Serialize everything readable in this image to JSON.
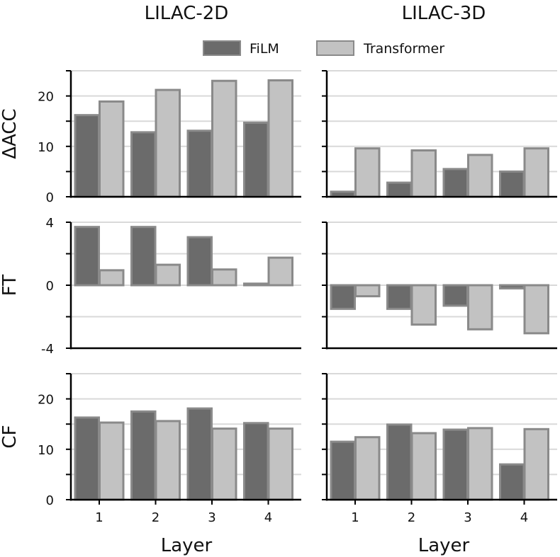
{
  "chart_data": {
    "type": "bar",
    "columns": [
      "LILAC-2D",
      "LILAC-3D"
    ],
    "xlabel": "Layer",
    "categories": [
      "1",
      "2",
      "3",
      "4"
    ],
    "legend": [
      {
        "name": "FiLM",
        "color": "#6b6b6b"
      },
      {
        "name": "Transformer",
        "color": "#c2c2c2"
      }
    ],
    "edge_color": "#8a8a8a",
    "grid_color": "#d9d9d9",
    "rows": [
      {
        "ylabel": "ΔACC",
        "ylim": [
          0,
          25
        ],
        "yticks": [
          0,
          5,
          10,
          15,
          20,
          25
        ],
        "ytick_labels": [
          "0",
          "",
          "10",
          "",
          "20",
          ""
        ],
        "panels": [
          {
            "column": "LILAC-2D",
            "series": [
              {
                "name": "FiLM",
                "values": [
                  16.2,
                  12.8,
                  13.1,
                  14.7
                ]
              },
              {
                "name": "Transformer",
                "values": [
                  18.9,
                  21.2,
                  23.0,
                  23.1
                ]
              }
            ]
          },
          {
            "column": "LILAC-3D",
            "series": [
              {
                "name": "FiLM",
                "values": [
                  1.0,
                  2.8,
                  5.5,
                  5.0
                ]
              },
              {
                "name": "Transformer",
                "values": [
                  9.6,
                  9.2,
                  8.3,
                  9.6
                ]
              }
            ]
          }
        ]
      },
      {
        "ylabel": "FT",
        "ylim": [
          -4,
          4
        ],
        "yticks": [
          -4,
          -2,
          0,
          2,
          4
        ],
        "ytick_labels": [
          "-4",
          "",
          "0",
          "",
          "4"
        ],
        "panels": [
          {
            "column": "LILAC-2D",
            "series": [
              {
                "name": "FiLM",
                "values": [
                  3.7,
                  3.7,
                  3.05,
                  0.1
                ]
              },
              {
                "name": "Transformer",
                "values": [
                  0.95,
                  1.3,
                  1.0,
                  1.75
                ]
              }
            ]
          },
          {
            "column": "LILAC-3D",
            "series": [
              {
                "name": "FiLM",
                "values": [
                  -1.5,
                  -1.5,
                  -1.3,
                  -0.2
                ]
              },
              {
                "name": "Transformer",
                "values": [
                  -0.7,
                  -2.5,
                  -2.8,
                  -3.05
                ]
              }
            ]
          }
        ]
      },
      {
        "ylabel": "CF",
        "ylim": [
          0,
          25
        ],
        "yticks": [
          0,
          5,
          10,
          15,
          20,
          25
        ],
        "ytick_labels": [
          "0",
          "",
          "10",
          "",
          "20",
          ""
        ],
        "panels": [
          {
            "column": "LILAC-2D",
            "series": [
              {
                "name": "FiLM",
                "values": [
                  16.3,
                  17.5,
                  18.1,
                  15.2
                ]
              },
              {
                "name": "Transformer",
                "values": [
                  15.3,
                  15.6,
                  14.1,
                  14.1
                ]
              }
            ]
          },
          {
            "column": "LILAC-3D",
            "series": [
              {
                "name": "FiLM",
                "values": [
                  11.5,
                  14.9,
                  13.9,
                  7.0
                ]
              },
              {
                "name": "Transformer",
                "values": [
                  12.4,
                  13.2,
                  14.2,
                  14.0
                ]
              }
            ]
          }
        ]
      }
    ]
  }
}
